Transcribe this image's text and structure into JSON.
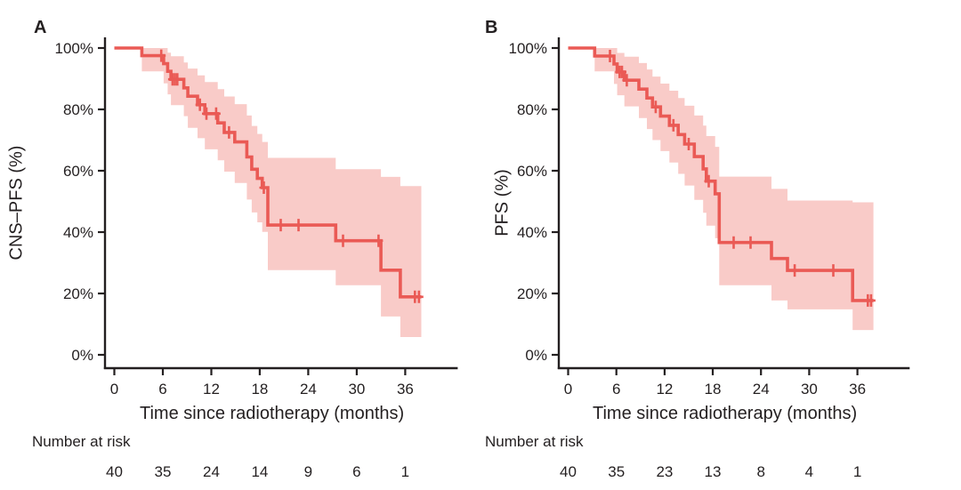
{
  "colors": {
    "curve": "#ea5a55",
    "band": "#f9cbc8",
    "text": "#231f20",
    "axis": "#231f20",
    "background": "#ffffff"
  },
  "chart_data": [
    {
      "type": "line",
      "chart_kind": "kaplan-meier-step-curve-with-confidence-band",
      "panel_label": "A",
      "xlabel": "Time since radiotherapy (months)",
      "ylabel": "CNS–PFS (%)",
      "xlim": [
        0,
        42
      ],
      "ylim": [
        0,
        100
      ],
      "x_ticks": [
        0,
        6,
        12,
        18,
        24,
        30,
        36
      ],
      "y_ticks": [
        0,
        20,
        40,
        60,
        80,
        100
      ],
      "y_tick_suffix": "%",
      "grid": false,
      "legend": "none",
      "curve_end_time": 38.0,
      "steps_format": [
        "time_months",
        "survival_pct",
        "ci_lower_pct",
        "ci_upper_pct"
      ],
      "steps": [
        [
          0,
          100,
          100,
          100
        ],
        [
          3.4,
          97.5,
          92.4,
          100
        ],
        [
          6.1,
          94.9,
          88.5,
          100
        ],
        [
          6.6,
          92.4,
          84.9,
          98.5
        ],
        [
          7.0,
          89.8,
          81.4,
          97.3
        ],
        [
          8.6,
          87.0,
          77.8,
          95.3
        ],
        [
          9.1,
          84.3,
          74.0,
          93.3
        ],
        [
          10.3,
          81.5,
          70.6,
          91.1
        ],
        [
          11.2,
          78.6,
          67.0,
          88.9
        ],
        [
          12.8,
          75.6,
          63.4,
          86.6
        ],
        [
          13.6,
          72.5,
          59.7,
          84.2
        ],
        [
          14.9,
          69.4,
          56.0,
          81.7
        ],
        [
          16.4,
          64.5,
          50.6,
          78.0
        ],
        [
          17.0,
          60.5,
          46.4,
          74.6
        ],
        [
          17.7,
          57.5,
          43.2,
          72.0
        ],
        [
          18.3,
          54.5,
          40.1,
          69.4
        ],
        [
          19.0,
          42.3,
          27.6,
          64.2
        ],
        [
          27.4,
          37.2,
          22.7,
          60.5
        ],
        [
          33.0,
          27.6,
          12.5,
          58.0
        ],
        [
          35.4,
          18.9,
          5.8,
          55.0
        ]
      ],
      "censor_marks": [
        [
          5.8,
          97.5
        ],
        [
          7.2,
          89.8
        ],
        [
          7.5,
          89.8
        ],
        [
          7.8,
          89.8
        ],
        [
          10.6,
          81.5
        ],
        [
          11.4,
          78.6
        ],
        [
          12.6,
          78.6
        ],
        [
          14.2,
          72.5
        ],
        [
          18.5,
          54.5
        ],
        [
          20.6,
          42.3
        ],
        [
          22.8,
          42.3
        ],
        [
          28.3,
          37.2
        ],
        [
          32.7,
          37.2
        ],
        [
          37.2,
          18.9
        ],
        [
          37.7,
          18.9
        ]
      ],
      "number_at_risk": {
        "label": "Number at risk",
        "times": [
          0,
          6,
          12,
          18,
          24,
          30,
          36
        ],
        "counts": [
          40,
          35,
          24,
          14,
          9,
          6,
          1
        ]
      }
    },
    {
      "type": "line",
      "chart_kind": "kaplan-meier-step-curve-with-confidence-band",
      "panel_label": "B",
      "xlabel": "Time since radiotherapy (months)",
      "ylabel": "PFS (%)",
      "xlim": [
        0,
        42
      ],
      "ylim": [
        0,
        100
      ],
      "x_ticks": [
        0,
        6,
        12,
        18,
        24,
        30,
        36
      ],
      "y_ticks": [
        0,
        20,
        40,
        60,
        80,
        100
      ],
      "y_tick_suffix": "%",
      "grid": false,
      "legend": "none",
      "curve_end_time": 38.0,
      "steps_format": [
        "time_months",
        "survival_pct",
        "ci_lower_pct",
        "ci_upper_pct"
      ],
      "steps": [
        [
          0,
          100,
          100,
          100
        ],
        [
          3.3,
          97.4,
          92.4,
          100
        ],
        [
          5.7,
          94.8,
          88.3,
          100
        ],
        [
          6.1,
          92.2,
          84.6,
          98.4
        ],
        [
          7.0,
          89.5,
          81.0,
          97.2
        ],
        [
          8.8,
          86.6,
          77.2,
          95.1
        ],
        [
          9.8,
          83.7,
          73.6,
          93.0
        ],
        [
          10.5,
          80.8,
          70.0,
          90.7
        ],
        [
          11.5,
          77.8,
          66.4,
          88.4
        ],
        [
          12.6,
          74.8,
          62.7,
          86.1
        ],
        [
          13.7,
          71.8,
          59.0,
          83.7
        ],
        [
          14.5,
          68.7,
          55.2,
          81.2
        ],
        [
          15.7,
          64.6,
          50.5,
          78.0
        ],
        [
          16.8,
          60.6,
          46.3,
          74.7
        ],
        [
          17.2,
          56.6,
          42.1,
          71.3
        ],
        [
          18.3,
          52.5,
          38.0,
          67.8
        ],
        [
          18.8,
          36.6,
          22.7,
          58.1
        ],
        [
          25.3,
          31.4,
          17.7,
          54.1
        ],
        [
          27.3,
          27.5,
          14.8,
          50.3
        ],
        [
          35.4,
          17.7,
          8.1,
          49.7
        ]
      ],
      "censor_marks": [
        [
          5.2,
          97.4
        ],
        [
          6.4,
          92.2
        ],
        [
          6.7,
          92.2
        ],
        [
          7.3,
          89.5
        ],
        [
          10.9,
          80.8
        ],
        [
          13.1,
          74.8
        ],
        [
          15.0,
          68.7
        ],
        [
          17.5,
          56.6
        ],
        [
          20.6,
          36.6
        ],
        [
          22.7,
          36.6
        ],
        [
          28.2,
          27.5
        ],
        [
          33.0,
          27.5
        ],
        [
          37.3,
          17.7
        ],
        [
          37.7,
          17.7
        ]
      ],
      "number_at_risk": {
        "label": "Number at risk",
        "times": [
          0,
          6,
          12,
          18,
          24,
          30,
          36
        ],
        "counts": [
          40,
          35,
          23,
          13,
          8,
          4,
          1
        ]
      }
    }
  ]
}
